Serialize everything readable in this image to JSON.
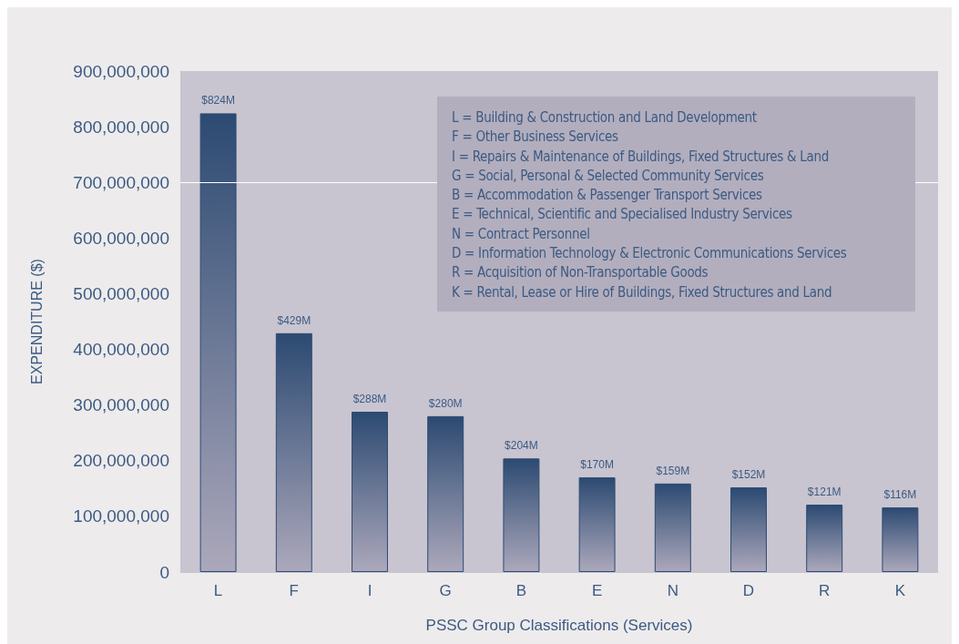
{
  "chart_data": {
    "type": "bar",
    "xlabel": "PSSC Group Classifications (Services)",
    "ylabel": "EXPENDITURE ($)",
    "categories": [
      "L",
      "F",
      "I",
      "G",
      "B",
      "E",
      "N",
      "D",
      "R",
      "K"
    ],
    "values": [
      824000000,
      429000000,
      288000000,
      280000000,
      204000000,
      170000000,
      159000000,
      152000000,
      121000000,
      116000000
    ],
    "value_labels": [
      "$824M",
      "$429M",
      "$288M",
      "$280M",
      "$204M",
      "$170M",
      "$159M",
      "$152M",
      "$121M",
      "$116M"
    ],
    "color": "#2c4a72",
    "ylim": [
      0,
      900000000
    ],
    "yticks": [
      {
        "value": 0,
        "label": "0"
      },
      {
        "value": 100000000,
        "label": "100,000,000"
      },
      {
        "value": 200000000,
        "label": "200,000,000"
      },
      {
        "value": 300000000,
        "label": "300,000,000"
      },
      {
        "value": 400000000,
        "label": "400,000,000"
      },
      {
        "value": 500000000,
        "label": "500,000,000"
      },
      {
        "value": 600000000,
        "label": "600,000,000"
      },
      {
        "value": 700000000,
        "label": "700,000,000"
      },
      {
        "value": 800000000,
        "label": "800,000,000"
      },
      {
        "value": 900000000,
        "label": "900,000,000"
      }
    ],
    "ref_lines": [
      {
        "axis": "y",
        "value": 700000000,
        "color": "#ffffff"
      }
    ],
    "grid": false,
    "annotations": [
      "L = Building & Construction and Land Development",
      "F = Other Business Services",
      "I = Repairs & Maintenance of Buildings, Fixed Structures & Land",
      "G = Social, Personal & Selected Community Services",
      "B = Accommodation & Passenger Transport Services",
      "E = Technical, Scientific and Specialised Industry Services",
      "N = Contract Personnel",
      "D = Information Technology & Electronic Communications Services",
      "R = Acquisition of Non-Transportable Goods",
      "K = Rental, Lease or Hire of Buildings, Fixed Structures and Land"
    ]
  }
}
